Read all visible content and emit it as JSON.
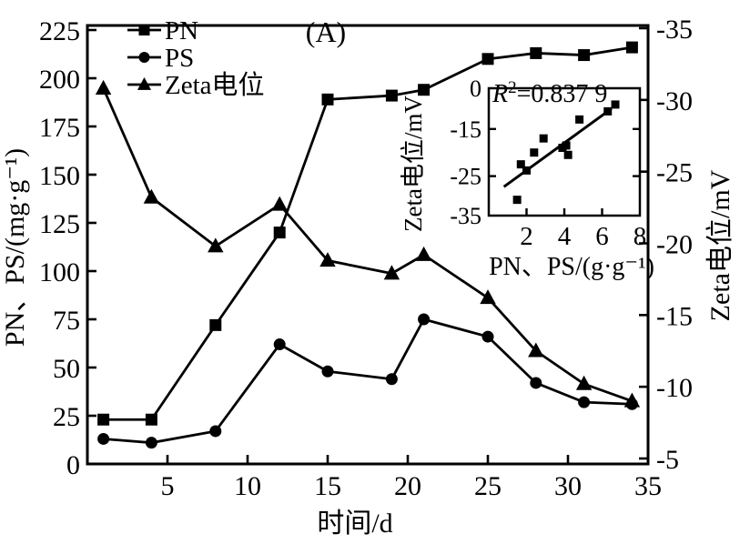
{
  "title": "(A)",
  "colors": {
    "ink": "#000000",
    "background": "#ffffff"
  },
  "axes": {
    "x": {
      "label": "时间/d",
      "range": [
        0,
        35
      ],
      "ticks": [
        0,
        5,
        10,
        15,
        20,
        25,
        30,
        35
      ]
    },
    "y_left": {
      "label": "PN、PS/(mg·g⁻¹)",
      "range": [
        0,
        225
      ],
      "ticks": [
        0,
        25,
        50,
        75,
        100,
        125,
        150,
        175,
        200,
        225
      ]
    },
    "y_right": {
      "label": "Zeta电位/mV",
      "range": [
        -5,
        -35
      ],
      "ticks": [
        -5,
        -10,
        -15,
        -20,
        -25,
        -30,
        -35
      ]
    }
  },
  "legend": {
    "position": "top-left",
    "items": [
      {
        "label": "PN",
        "marker": "square"
      },
      {
        "label": "PS",
        "marker": "circle"
      },
      {
        "label": "Zeta电位",
        "marker": "triangle"
      }
    ]
  },
  "chart_data": {
    "type": "line",
    "title": "(A)",
    "xlabel": "时间/d",
    "ylabel_left": "PN、PS/(mg·g⁻¹)",
    "ylabel_right": "Zeta电位/mV",
    "x_range": [
      0,
      35
    ],
    "y_left_range": [
      0,
      225
    ],
    "y_right_range": [
      -5,
      -35
    ],
    "grid": false,
    "x": [
      1,
      4,
      8,
      12,
      15,
      19,
      21,
      25,
      28,
      31,
      34
    ],
    "series": [
      {
        "name": "PN",
        "axis": "left",
        "marker": "square",
        "values": [
          23,
          23,
          72,
          120,
          189,
          191,
          194,
          210,
          213,
          212,
          216
        ]
      },
      {
        "name": "PS",
        "axis": "left",
        "marker": "circle",
        "values": [
          13,
          11,
          17,
          62,
          48,
          44,
          75,
          66,
          42,
          32,
          31
        ]
      },
      {
        "name": "Zeta电位",
        "axis": "right",
        "marker": "triangle",
        "values": [
          -30.8,
          -23.2,
          -19.8,
          -22.7,
          -18.8,
          -17.9,
          -19.2,
          -16.2,
          -12.5,
          -10.2,
          -9.0
        ]
      }
    ],
    "inset": {
      "type": "scatter",
      "annotation": {
        "r": "R",
        "sup": "2",
        "rest": "=0.837 9"
      },
      "xlabel": "PN、PS/(g·g⁻¹)",
      "ylabel": "Zeta电位/mV",
      "x_range": [
        0,
        8
      ],
      "x_ticks": [
        2,
        4,
        6,
        8
      ],
      "y_ticks": [
        {
          "label": "0",
          "value": 0,
          "fraction": 0
        },
        {
          "label": "-15",
          "value": -15,
          "fraction": 0.32
        },
        {
          "label": "-25",
          "value": -25,
          "fraction": 0.69
        },
        {
          "label": "-35",
          "value": -35,
          "fraction": 1
        }
      ],
      "points": [
        [
          1.5,
          -31
        ],
        [
          1.7,
          -22.5
        ],
        [
          2.0,
          -23.8
        ],
        [
          2.4,
          -20
        ],
        [
          2.9,
          -17
        ],
        [
          3.9,
          -19
        ],
        [
          4.1,
          -18.5
        ],
        [
          4.2,
          -20.5
        ],
        [
          4.8,
          -11.5
        ],
        [
          6.3,
          -8.5
        ],
        [
          6.7,
          -6
        ]
      ],
      "trend_line": [
        [
          0.8,
          -27.7
        ],
        [
          6.5,
          -7.5
        ]
      ]
    }
  }
}
